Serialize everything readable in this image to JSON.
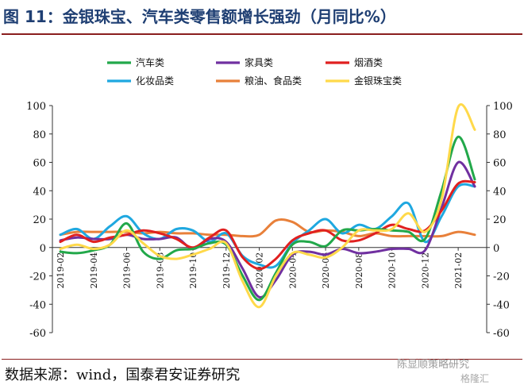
{
  "title": "图 11：金银珠宝、汽车类零售额增长强劲（月同比%）",
  "source": "数据来源：wind，国泰君安证券研究",
  "watermark": "陈显顺策略研究",
  "watermark2": "格隆汇",
  "chart_data": {
    "type": "line",
    "ylim": [
      -60,
      100
    ],
    "yticks": [
      -60,
      -40,
      -20,
      0,
      20,
      40,
      60,
      80,
      100
    ],
    "yticks_right": [
      -60,
      -40,
      -20,
      0,
      20,
      40,
      60,
      80,
      100
    ],
    "ytick_labels": [
      "-60",
      "-40",
      "-20",
      "0",
      "20",
      "40",
      "60",
      "80",
      "100"
    ],
    "ytick_labels_right": [
      "-60",
      "-40",
      "-20",
      "0",
      "20",
      "40",
      "60",
      "80",
      "100"
    ],
    "grid": false,
    "legend_position": "top",
    "x_tick_labels": [
      "2019-02",
      "2019-04",
      "2019-06",
      "2019-08",
      "2019-10",
      "2019-12",
      "2020-02",
      "2020-04",
      "2020-06",
      "2020-08",
      "2020-10",
      "2020-12",
      "2021-02"
    ],
    "x": [
      "2019-02",
      "2019-03",
      "2019-04",
      "2019-05",
      "2019-06",
      "2019-07",
      "2019-08",
      "2019-09",
      "2019-10",
      "2019-11",
      "2019-12",
      "2020-01",
      "2020-02",
      "2020-03",
      "2020-04",
      "2020-05",
      "2020-06",
      "2020-07",
      "2020-08",
      "2020-09",
      "2020-10",
      "2020-11",
      "2020-12",
      "2021-01",
      "2021-02",
      "2021-03"
    ],
    "series": [
      {
        "name": "汽车类",
        "color": "#22a84a",
        "values": [
          -3,
          -4,
          -2,
          2,
          17,
          -3,
          -8,
          -2,
          -1,
          3,
          2,
          -20,
          -37,
          -18,
          2,
          4,
          1,
          12,
          12,
          13,
          12,
          11,
          6,
          40,
          78,
          48
        ]
      },
      {
        "name": "家具类",
        "color": "#7030a0",
        "values": [
          5,
          7,
          6,
          6,
          9,
          6,
          6,
          7,
          -1,
          6,
          4,
          -15,
          -35,
          -23,
          -5,
          -3,
          -5,
          -1,
          -4,
          -3,
          -1,
          -1,
          -2,
          28,
          60,
          43
        ]
      },
      {
        "name": "烟酒类",
        "color": "#e02020",
        "values": [
          4,
          9,
          4,
          7,
          9,
          12,
          10,
          6,
          0,
          7,
          12,
          -7,
          -15,
          -8,
          5,
          10,
          12,
          5,
          5,
          10,
          16,
          13,
          12,
          26,
          45,
          46
        ]
      },
      {
        "name": "化妆品类",
        "color": "#1fa8e0",
        "values": [
          9,
          13,
          6,
          15,
          22,
          10,
          6,
          13,
          12,
          4,
          10,
          -6,
          -12,
          -13,
          3,
          12,
          20,
          10,
          16,
          13,
          22,
          31,
          4,
          22,
          43,
          43
        ]
      },
      {
        "name": "粮油、食品类",
        "color": "#e8803a",
        "values": [
          9,
          11,
          11,
          11,
          11,
          10,
          11,
          10,
          10,
          9,
          9,
          8,
          9,
          19,
          18,
          11,
          12,
          11,
          8,
          10,
          8,
          8,
          8,
          8,
          11,
          9
        ]
      },
      {
        "name": "金银珠宝类",
        "color": "#ffd94a",
        "values": [
          -1,
          2,
          -1,
          2,
          12,
          3,
          -6,
          -8,
          -5,
          -1,
          3,
          -24,
          -42,
          -20,
          -4,
          -5,
          -7,
          0,
          12,
          12,
          13,
          24,
          11,
          34,
          99,
          83
        ]
      }
    ]
  }
}
